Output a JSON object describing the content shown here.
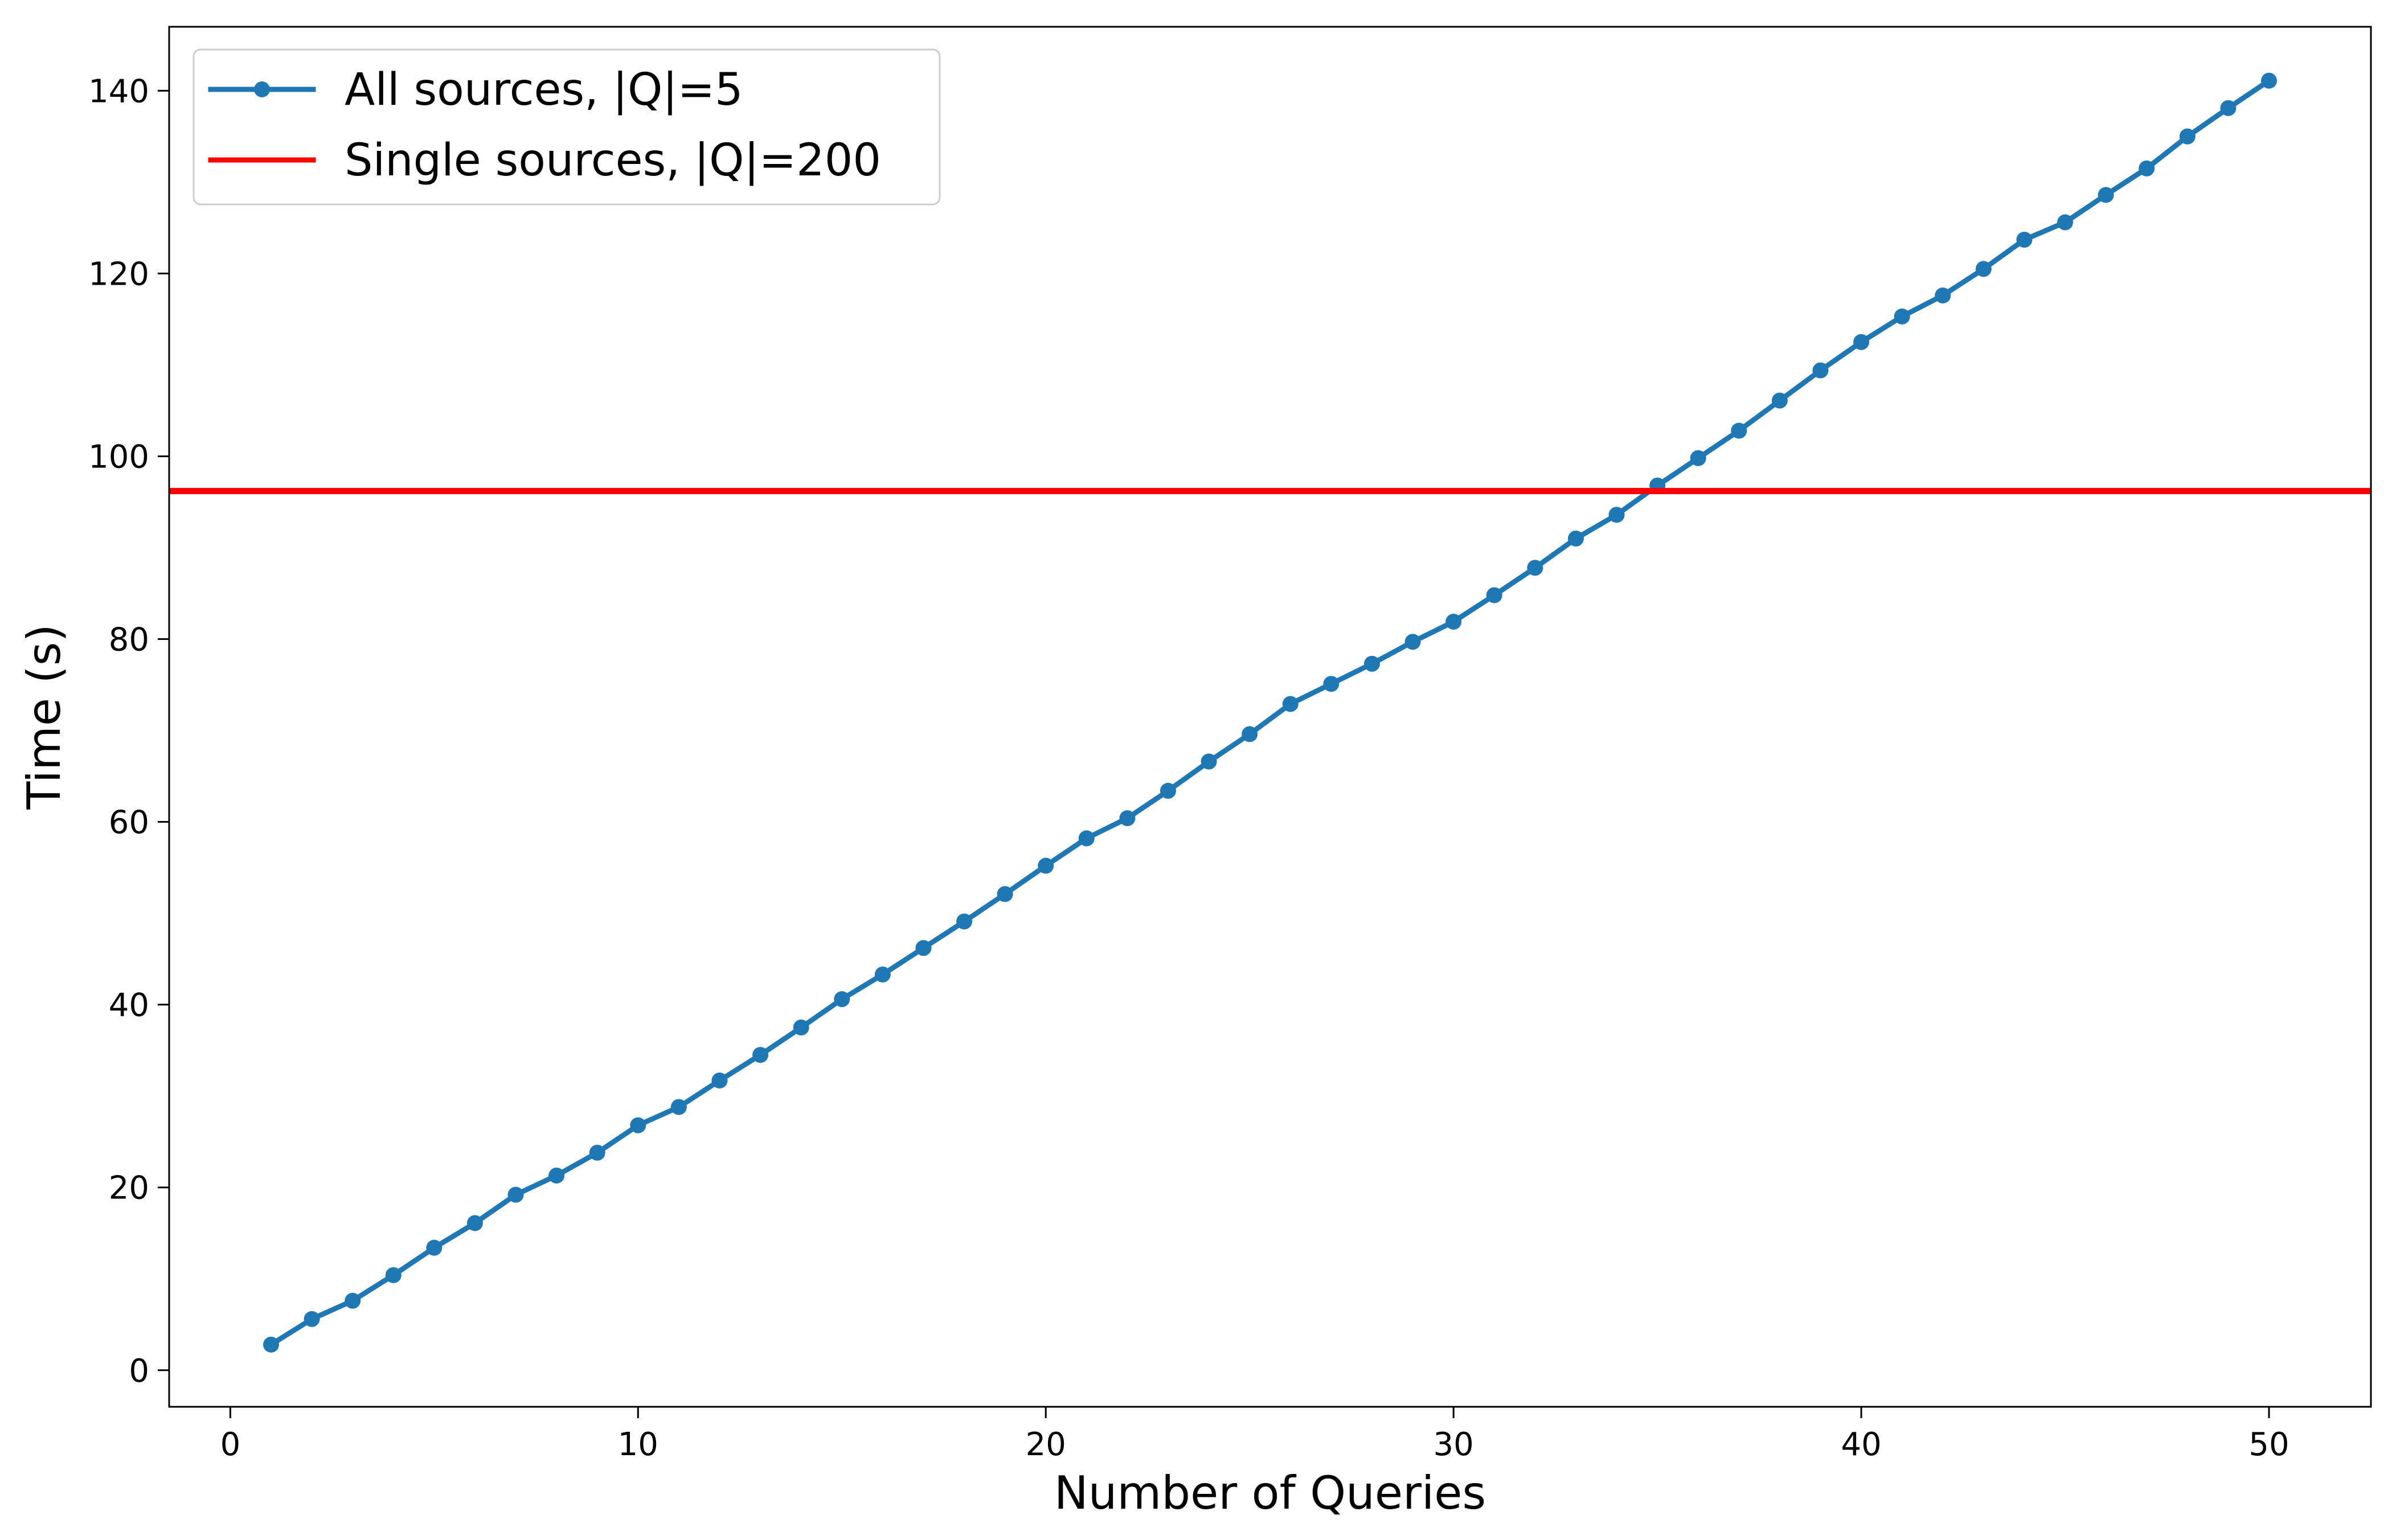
{
  "chart_data": {
    "type": "line",
    "xlabel": "Number of Queries",
    "ylabel": "Time (s)",
    "xlim": [
      -1.5,
      52.5
    ],
    "ylim": [
      -4,
      147
    ],
    "xticks": [
      0,
      10,
      20,
      30,
      40,
      50
    ],
    "yticks": [
      0,
      20,
      40,
      60,
      80,
      100,
      120,
      140
    ],
    "grid": false,
    "legend_position": "top-left",
    "series": [
      {
        "name": "All sources, |Q|=5",
        "kind": "line-with-markers",
        "color": "#1f77b4",
        "x": [
          1,
          2,
          3,
          4,
          5,
          6,
          7,
          8,
          9,
          10,
          11,
          12,
          13,
          14,
          15,
          16,
          17,
          18,
          19,
          20,
          21,
          22,
          23,
          24,
          25,
          26,
          27,
          28,
          29,
          30,
          31,
          32,
          33,
          34,
          35,
          36,
          37,
          38,
          39,
          40,
          41,
          42,
          43,
          44,
          45,
          46,
          47,
          48,
          49,
          50
        ],
        "values": [
          2.8,
          5.6,
          7.6,
          10.4,
          13.4,
          16.1,
          19.2,
          21.3,
          23.8,
          26.8,
          28.8,
          31.7,
          34.5,
          37.5,
          40.6,
          43.3,
          46.2,
          49.1,
          52.1,
          55.2,
          58.2,
          60.4,
          63.4,
          66.6,
          69.6,
          72.9,
          75.1,
          77.3,
          79.7,
          81.9,
          84.8,
          87.8,
          91.0,
          93.6,
          96.8,
          99.8,
          102.8,
          106.1,
          109.4,
          112.5,
          115.3,
          117.6,
          120.5,
          123.7,
          125.6,
          128.6,
          131.5,
          135.0,
          138.1,
          141.1
        ]
      },
      {
        "name": "Single sources, |Q|=200",
        "kind": "horizontal-line",
        "color": "#ff0000",
        "value": 96.2
      }
    ]
  }
}
